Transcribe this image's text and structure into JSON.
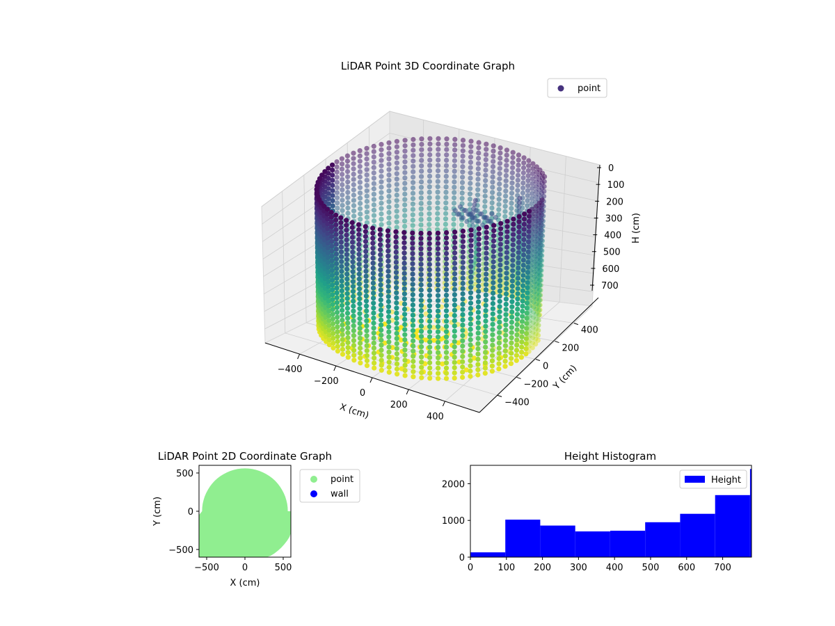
{
  "figure": {
    "colors": {
      "point_2d": "#90ee90",
      "wall_2d": "#0000ff",
      "hist_bar": "#0000ff",
      "legend_3d_marker": "#46327e"
    }
  },
  "chart_data": [
    {
      "type": "scatter",
      "title": "LiDAR Point 3D Coordinate Graph",
      "xlabel": "X (cm)",
      "ylabel": "Y (cm)",
      "zlabel": "H (cm)",
      "xticks": [
        "−400",
        "−200",
        "0",
        "200",
        "400"
      ],
      "yticks": [
        "−400",
        "−200",
        "0",
        "200",
        "400"
      ],
      "zticks": [
        "0",
        "100",
        "200",
        "300",
        "400",
        "500",
        "600",
        "700"
      ],
      "zlim": [
        700,
        0
      ],
      "colormap": "viridis",
      "legend": {
        "entries": [
          "point"
        ],
        "placement": "upper-right"
      },
      "description_shape": "cylindrical wall of points around origin, radius about 550 cm, height 0 to 750 cm"
    },
    {
      "type": "scatter",
      "title": "LiDAR Point 2D Coordinate Graph",
      "xlabel": "X (cm)",
      "ylabel": "Y (cm)",
      "xticks": [
        "−500",
        "0",
        "500"
      ],
      "yticks": [
        "500",
        "0",
        "−500"
      ],
      "xlim": [
        -600,
        600
      ],
      "ylim": [
        -600,
        600
      ],
      "series": [
        {
          "name": "point",
          "color": "#90ee90"
        },
        {
          "name": "wall",
          "color": "#0000ff"
        }
      ],
      "legend": {
        "entries": [
          "point",
          "wall"
        ],
        "placement": "outside-right"
      }
    },
    {
      "type": "bar",
      "title": "Height Histogram",
      "xticks": [
        "0",
        "100",
        "200",
        "300",
        "400",
        "500",
        "600",
        "700"
      ],
      "yticks": [
        "0",
        "1000",
        "2000"
      ],
      "xlim": [
        0,
        780
      ],
      "ylim": [
        0,
        2500
      ],
      "bin_edges": [
        0,
        97,
        194,
        291,
        388,
        485,
        582,
        679,
        776,
        780
      ],
      "values": [
        130,
        1020,
        860,
        700,
        720,
        950,
        1180,
        1690,
        2400
      ],
      "series": [
        {
          "name": "Height",
          "color": "#0000ff"
        }
      ],
      "legend": {
        "entries": [
          "Height"
        ],
        "placement": "upper-right"
      }
    }
  ]
}
